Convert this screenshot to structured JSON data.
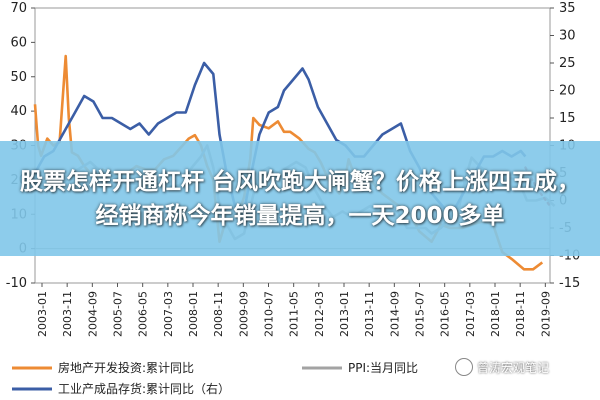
{
  "banner": {
    "headline": "股票怎样开通杠杆 台风吹跑大闸蟹？价格上涨四五成，经销商称今年销量提高，一天2000多单"
  },
  "watermark": {
    "text": "曾涛宏观笔记"
  },
  "chart_data": {
    "type": "line",
    "left_axis": {
      "range": [
        -10,
        70
      ],
      "ticks": [
        "-10",
        "0",
        "10",
        "20",
        "30",
        "40",
        "50",
        "60",
        "70"
      ]
    },
    "right_axis": {
      "range": [
        -15,
        35
      ],
      "ticks": [
        "-15",
        "-10",
        "-5",
        "0",
        "5",
        "10",
        "15",
        "20",
        "25",
        "30",
        "35"
      ]
    },
    "x_tick_labels": [
      "2003-01",
      "2003-11",
      "2004-09",
      "2005-07",
      "2006-05",
      "2007-03",
      "2008-01",
      "2008-11",
      "2009-09",
      "2010-07",
      "2011-05",
      "2012-03",
      "2013-01",
      "2013-11",
      "2014-09",
      "2015-07",
      "2016-05",
      "2017-03",
      "2018-01",
      "2018-11",
      "2019-09"
    ],
    "series": [
      {
        "name": "房地产开发投资:累计同比",
        "axis": "left",
        "color": "#ED8B34",
        "x": [
          2003.0,
          2003.1,
          2003.2,
          2003.4,
          2003.6,
          2003.8,
          2004.0,
          2004.1,
          2004.2,
          2004.4,
          2004.6,
          2004.8,
          2005.0,
          2005.2,
          2005.5,
          2005.8,
          2006.0,
          2006.3,
          2006.6,
          2006.9,
          2007.2,
          2007.5,
          2007.8,
          2008.0,
          2008.2,
          2008.4,
          2008.6,
          2008.8,
          2009.0,
          2009.1,
          2009.2,
          2009.4,
          2009.6,
          2009.8,
          2010.0,
          2010.1,
          2010.3,
          2010.6,
          2010.9,
          2011.1,
          2011.3,
          2011.6,
          2011.9,
          2012.1,
          2012.3,
          2012.6,
          2012.9,
          2013.1,
          2013.2,
          2013.4,
          2013.7,
          2014.0,
          2014.3,
          2014.6,
          2014.9,
          2015.2,
          2015.5,
          2015.9,
          2016.2,
          2016.5,
          2016.9,
          2017.2,
          2017.6,
          2017.9,
          2018.2,
          2018.5,
          2018.9,
          2019.2,
          2019.5
        ],
        "values": [
          42,
          30,
          27,
          32,
          30,
          31,
          56,
          38,
          28,
          27,
          24,
          22,
          21,
          23,
          22,
          22,
          22,
          24,
          23,
          23,
          26,
          27,
          30,
          32,
          33,
          30,
          24,
          20,
          2,
          5,
          8,
          9,
          10,
          15,
          26,
          38,
          36,
          35,
          37,
          34,
          34,
          32,
          29,
          28,
          25,
          19,
          16,
          21,
          26,
          21,
          21,
          19,
          16,
          14,
          12,
          10,
          5,
          2,
          7,
          6,
          6,
          7,
          8,
          7,
          -1,
          -3,
          -6,
          -6,
          -4
        ]
      },
      {
        "name": "PPI:当月同比",
        "axis": "right",
        "color": "#A3A3A3",
        "x": [
          2003.0,
          2003.3,
          2003.6,
          2003.9,
          2004.2,
          2004.5,
          2004.8,
          2005.1,
          2005.4,
          2005.7,
          2006.0,
          2006.3,
          2006.6,
          2006.9,
          2007.2,
          2007.5,
          2007.8,
          2008.1,
          2008.4,
          2008.6,
          2008.8,
          2009.0,
          2009.3,
          2009.5,
          2009.8,
          2010.1,
          2010.3,
          2010.6,
          2010.9,
          2011.2,
          2011.5,
          2011.8,
          2012.1,
          2012.4,
          2012.7,
          2013.0,
          2013.3,
          2013.6,
          2013.9,
          2014.2,
          2014.5,
          2014.8,
          2015.1,
          2015.4,
          2015.7,
          2015.9,
          2016.2,
          2016.5,
          2016.8,
          2017.0,
          2017.2,
          2017.5,
          2017.8,
          2018.1,
          2018.4,
          2018.7,
          2019.0,
          2019.3,
          2019.6,
          2019.9
        ],
        "values": [
          3,
          2.5,
          1.5,
          3,
          5,
          6,
          7,
          5.5,
          5,
          4,
          3,
          3,
          4,
          3,
          3,
          2.5,
          3,
          6,
          8,
          10,
          6,
          -1,
          -5,
          -7,
          -6,
          1,
          5,
          6,
          5,
          6,
          7,
          6,
          2,
          -1,
          -3,
          -2,
          -3,
          -2,
          -1,
          -2,
          -1.5,
          -2,
          -5,
          -5,
          -5,
          -6,
          -5,
          -3,
          -1,
          4,
          7.8,
          6,
          5,
          4,
          4,
          4,
          0,
          0,
          0.5,
          -1
        ]
      },
      {
        "name": "工业产成品存货:累计同比（右）",
        "axis": "right",
        "color": "#3B5EA6",
        "x": [
          2003.0,
          2003.3,
          2003.6,
          2004.0,
          2004.3,
          2004.6,
          2004.9,
          2005.2,
          2005.5,
          2005.8,
          2006.1,
          2006.4,
          2006.7,
          2007.0,
          2007.3,
          2007.6,
          2007.9,
          2008.2,
          2008.5,
          2008.8,
          2009.0,
          2009.2,
          2009.5,
          2009.8,
          2010.0,
          2010.3,
          2010.6,
          2010.9,
          2011.1,
          2011.4,
          2011.7,
          2011.9,
          2012.2,
          2012.5,
          2012.8,
          2013.1,
          2013.4,
          2013.7,
          2014.0,
          2014.3,
          2014.6,
          2014.9,
          2015.2,
          2015.5,
          2015.8,
          2016.1,
          2016.4,
          2016.7,
          2017.0,
          2017.3,
          2017.6,
          2017.9,
          2018.2,
          2018.5,
          2018.8,
          2018.95
        ],
        "values": [
          5,
          8,
          9,
          13,
          16,
          19,
          18,
          15,
          15,
          14,
          13,
          14,
          12,
          14,
          15,
          16,
          16,
          21,
          25,
          23,
          12,
          6,
          -1,
          -2,
          4,
          12,
          16,
          17,
          20,
          22,
          24,
          22,
          17,
          14,
          11,
          10,
          8,
          8,
          10,
          12,
          13,
          14,
          9,
          6,
          2,
          0,
          -2,
          -1,
          2,
          5,
          8,
          8,
          9,
          8,
          9,
          8
        ]
      }
    ],
    "legend": [
      {
        "label": "房地产开发投资:累计同比",
        "color": "#ED8B34"
      },
      {
        "label": "PPI:当月同比",
        "color": "#A3A3A3"
      },
      {
        "label": "工业产成品存货:累计同比（右）",
        "color": "#3B5EA6"
      }
    ],
    "projection": {
      "color": "#C0392B",
      "x": [
        2018.95,
        2019.15,
        2019.35,
        2019.55,
        2019.75
      ],
      "values": [
        6,
        4,
        2,
        0.5,
        -1
      ],
      "axis": "right"
    }
  }
}
